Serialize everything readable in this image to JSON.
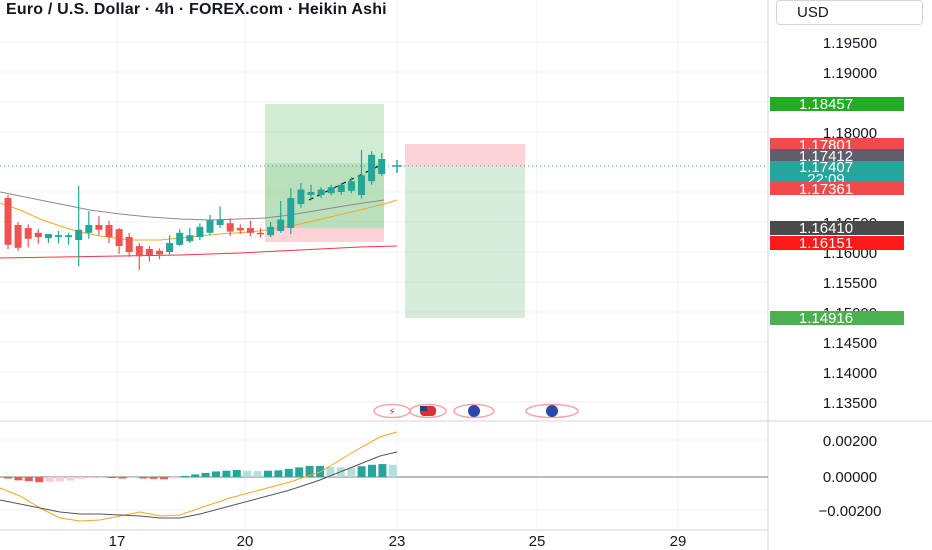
{
  "header": {
    "title": "Euro / U.S. Dollar · 4h · FOREX.com · Heikin Ashi",
    "currency_label": "USD"
  },
  "price_axis": {
    "ticks": [
      "1.19500",
      "1.19000",
      "1.18000",
      "1.16500",
      "1.16000",
      "1.15500",
      "1.15000",
      "1.14500",
      "1.14000",
      "1.13500"
    ],
    "badges": [
      {
        "label": "1.18457",
        "color": "#22ab24"
      },
      {
        "label": "1.17801",
        "color": "#f04b4b"
      },
      {
        "label": "1.17412",
        "color": "#5d606b"
      },
      {
        "label": "1.17407",
        "sub": "22:09",
        "color": "#26a69a"
      },
      {
        "label": "1.17361",
        "color": "#f04b4b"
      },
      {
        "label": "1.16410",
        "color": "#4a4a4a"
      },
      {
        "label": "1.16151",
        "color": "#ff1a1a"
      },
      {
        "label": "1.14916",
        "color": "#4caf50"
      }
    ]
  },
  "macd_axis": {
    "ticks": [
      "0.00200",
      "0.00000",
      "−0.00200"
    ]
  },
  "time_axis": {
    "labels": [
      "17",
      "20",
      "23",
      "25",
      "29"
    ]
  },
  "chart_data": {
    "type": "candlestick",
    "title": "Euro / U.S. Dollar · 4h · FOREX.com · Heikin Ashi",
    "price_range": [
      1.1325,
      1.1975
    ],
    "candles": [
      {
        "o": 1.169,
        "h": 1.1695,
        "l": 1.1605,
        "c": 1.1612
      },
      {
        "o": 1.1645,
        "h": 1.165,
        "l": 1.1602,
        "c": 1.1607
      },
      {
        "o": 1.164,
        "h": 1.1646,
        "l": 1.1608,
        "c": 1.1622
      },
      {
        "o": 1.1632,
        "h": 1.1638,
        "l": 1.1614,
        "c": 1.1625
      },
      {
        "o": 1.1623,
        "h": 1.1628,
        "l": 1.1615,
        "c": 1.163
      },
      {
        "o": 1.1625,
        "h": 1.1635,
        "l": 1.1614,
        "c": 1.1628
      },
      {
        "o": 1.1625,
        "h": 1.1632,
        "l": 1.1612,
        "c": 1.1628
      },
      {
        "o": 1.162,
        "h": 1.171,
        "l": 1.1576,
        "c": 1.1637
      },
      {
        "o": 1.1632,
        "h": 1.1668,
        "l": 1.1622,
        "c": 1.1645
      },
      {
        "o": 1.1645,
        "h": 1.166,
        "l": 1.1628,
        "c": 1.1637
      },
      {
        "o": 1.1645,
        "h": 1.1652,
        "l": 1.1615,
        "c": 1.1625
      },
      {
        "o": 1.1638,
        "h": 1.164,
        "l": 1.1597,
        "c": 1.161
      },
      {
        "o": 1.1625,
        "h": 1.1632,
        "l": 1.1592,
        "c": 1.16
      },
      {
        "o": 1.161,
        "h": 1.1615,
        "l": 1.157,
        "c": 1.1593
      },
      {
        "o": 1.1605,
        "h": 1.161,
        "l": 1.1584,
        "c": 1.1595
      },
      {
        "o": 1.1602,
        "h": 1.1606,
        "l": 1.1588,
        "c": 1.1596
      },
      {
        "o": 1.16,
        "h": 1.1628,
        "l": 1.1596,
        "c": 1.1615
      },
      {
        "o": 1.1612,
        "h": 1.1638,
        "l": 1.161,
        "c": 1.1632
      },
      {
        "o": 1.1618,
        "h": 1.164,
        "l": 1.1615,
        "c": 1.1628
      },
      {
        "o": 1.1625,
        "h": 1.1648,
        "l": 1.162,
        "c": 1.1642
      },
      {
        "o": 1.1632,
        "h": 1.1662,
        "l": 1.1628,
        "c": 1.1653
      },
      {
        "o": 1.1645,
        "h": 1.1676,
        "l": 1.164,
        "c": 1.1654
      },
      {
        "o": 1.1648,
        "h": 1.1656,
        "l": 1.1627,
        "c": 1.1634
      },
      {
        "o": 1.164,
        "h": 1.1646,
        "l": 1.163,
        "c": 1.1636
      },
      {
        "o": 1.164,
        "h": 1.1652,
        "l": 1.1626,
        "c": 1.1632
      },
      {
        "o": 1.1632,
        "h": 1.164,
        "l": 1.1624,
        "c": 1.163
      },
      {
        "o": 1.1628,
        "h": 1.165,
        "l": 1.1625,
        "c": 1.1642
      },
      {
        "o": 1.1635,
        "h": 1.1685,
        "l": 1.1632,
        "c": 1.1654
      },
      {
        "o": 1.164,
        "h": 1.1706,
        "l": 1.163,
        "c": 1.169
      },
      {
        "o": 1.168,
        "h": 1.1715,
        "l": 1.1674,
        "c": 1.1704
      },
      {
        "o": 1.1695,
        "h": 1.1712,
        "l": 1.1686,
        "c": 1.17
      },
      {
        "o": 1.1695,
        "h": 1.1708,
        "l": 1.169,
        "c": 1.1704
      },
      {
        "o": 1.1698,
        "h": 1.1712,
        "l": 1.1694,
        "c": 1.1708
      },
      {
        "o": 1.17,
        "h": 1.1715,
        "l": 1.1695,
        "c": 1.1712
      },
      {
        "o": 1.1702,
        "h": 1.1725,
        "l": 1.1698,
        "c": 1.1718
      },
      {
        "o": 1.1695,
        "h": 1.177,
        "l": 1.1689,
        "c": 1.1728
      },
      {
        "o": 1.1718,
        "h": 1.1768,
        "l": 1.1712,
        "c": 1.1762
      },
      {
        "o": 1.173,
        "h": 1.1765,
        "l": 1.1727,
        "c": 1.1755
      }
    ],
    "macd_histogram": [
      -8e-05,
      -0.00018,
      -0.00022,
      -0.00028,
      -0.00026,
      -0.00024,
      -0.0002,
      -0.00012,
      -6e-05,
      -2e-05,
      -4e-05,
      -8e-05,
      -6e-05,
      -8e-05,
      -0.0001,
      -0.00012,
      -8e-05,
      6e-05,
      0.00014,
      0.00022,
      0.0003,
      0.00034,
      0.00038,
      0.00034,
      0.00032,
      0.00034,
      0.00036,
      0.00044,
      0.00052,
      0.0006,
      0.0006,
      0.00054,
      0.00052,
      0.0005,
      0.00058,
      0.00066,
      0.0007,
      0.00066
    ],
    "macd_range": [
      -0.003,
      0.0034
    ]
  }
}
